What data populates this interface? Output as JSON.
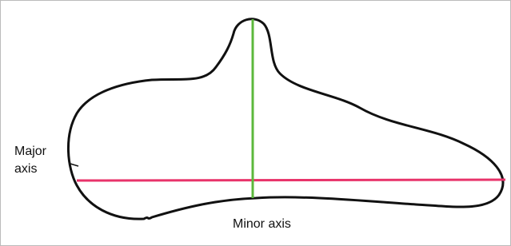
{
  "labels": {
    "major_axis": [
      "Major",
      "axis"
    ],
    "minor_axis": "Minor axis"
  }
}
